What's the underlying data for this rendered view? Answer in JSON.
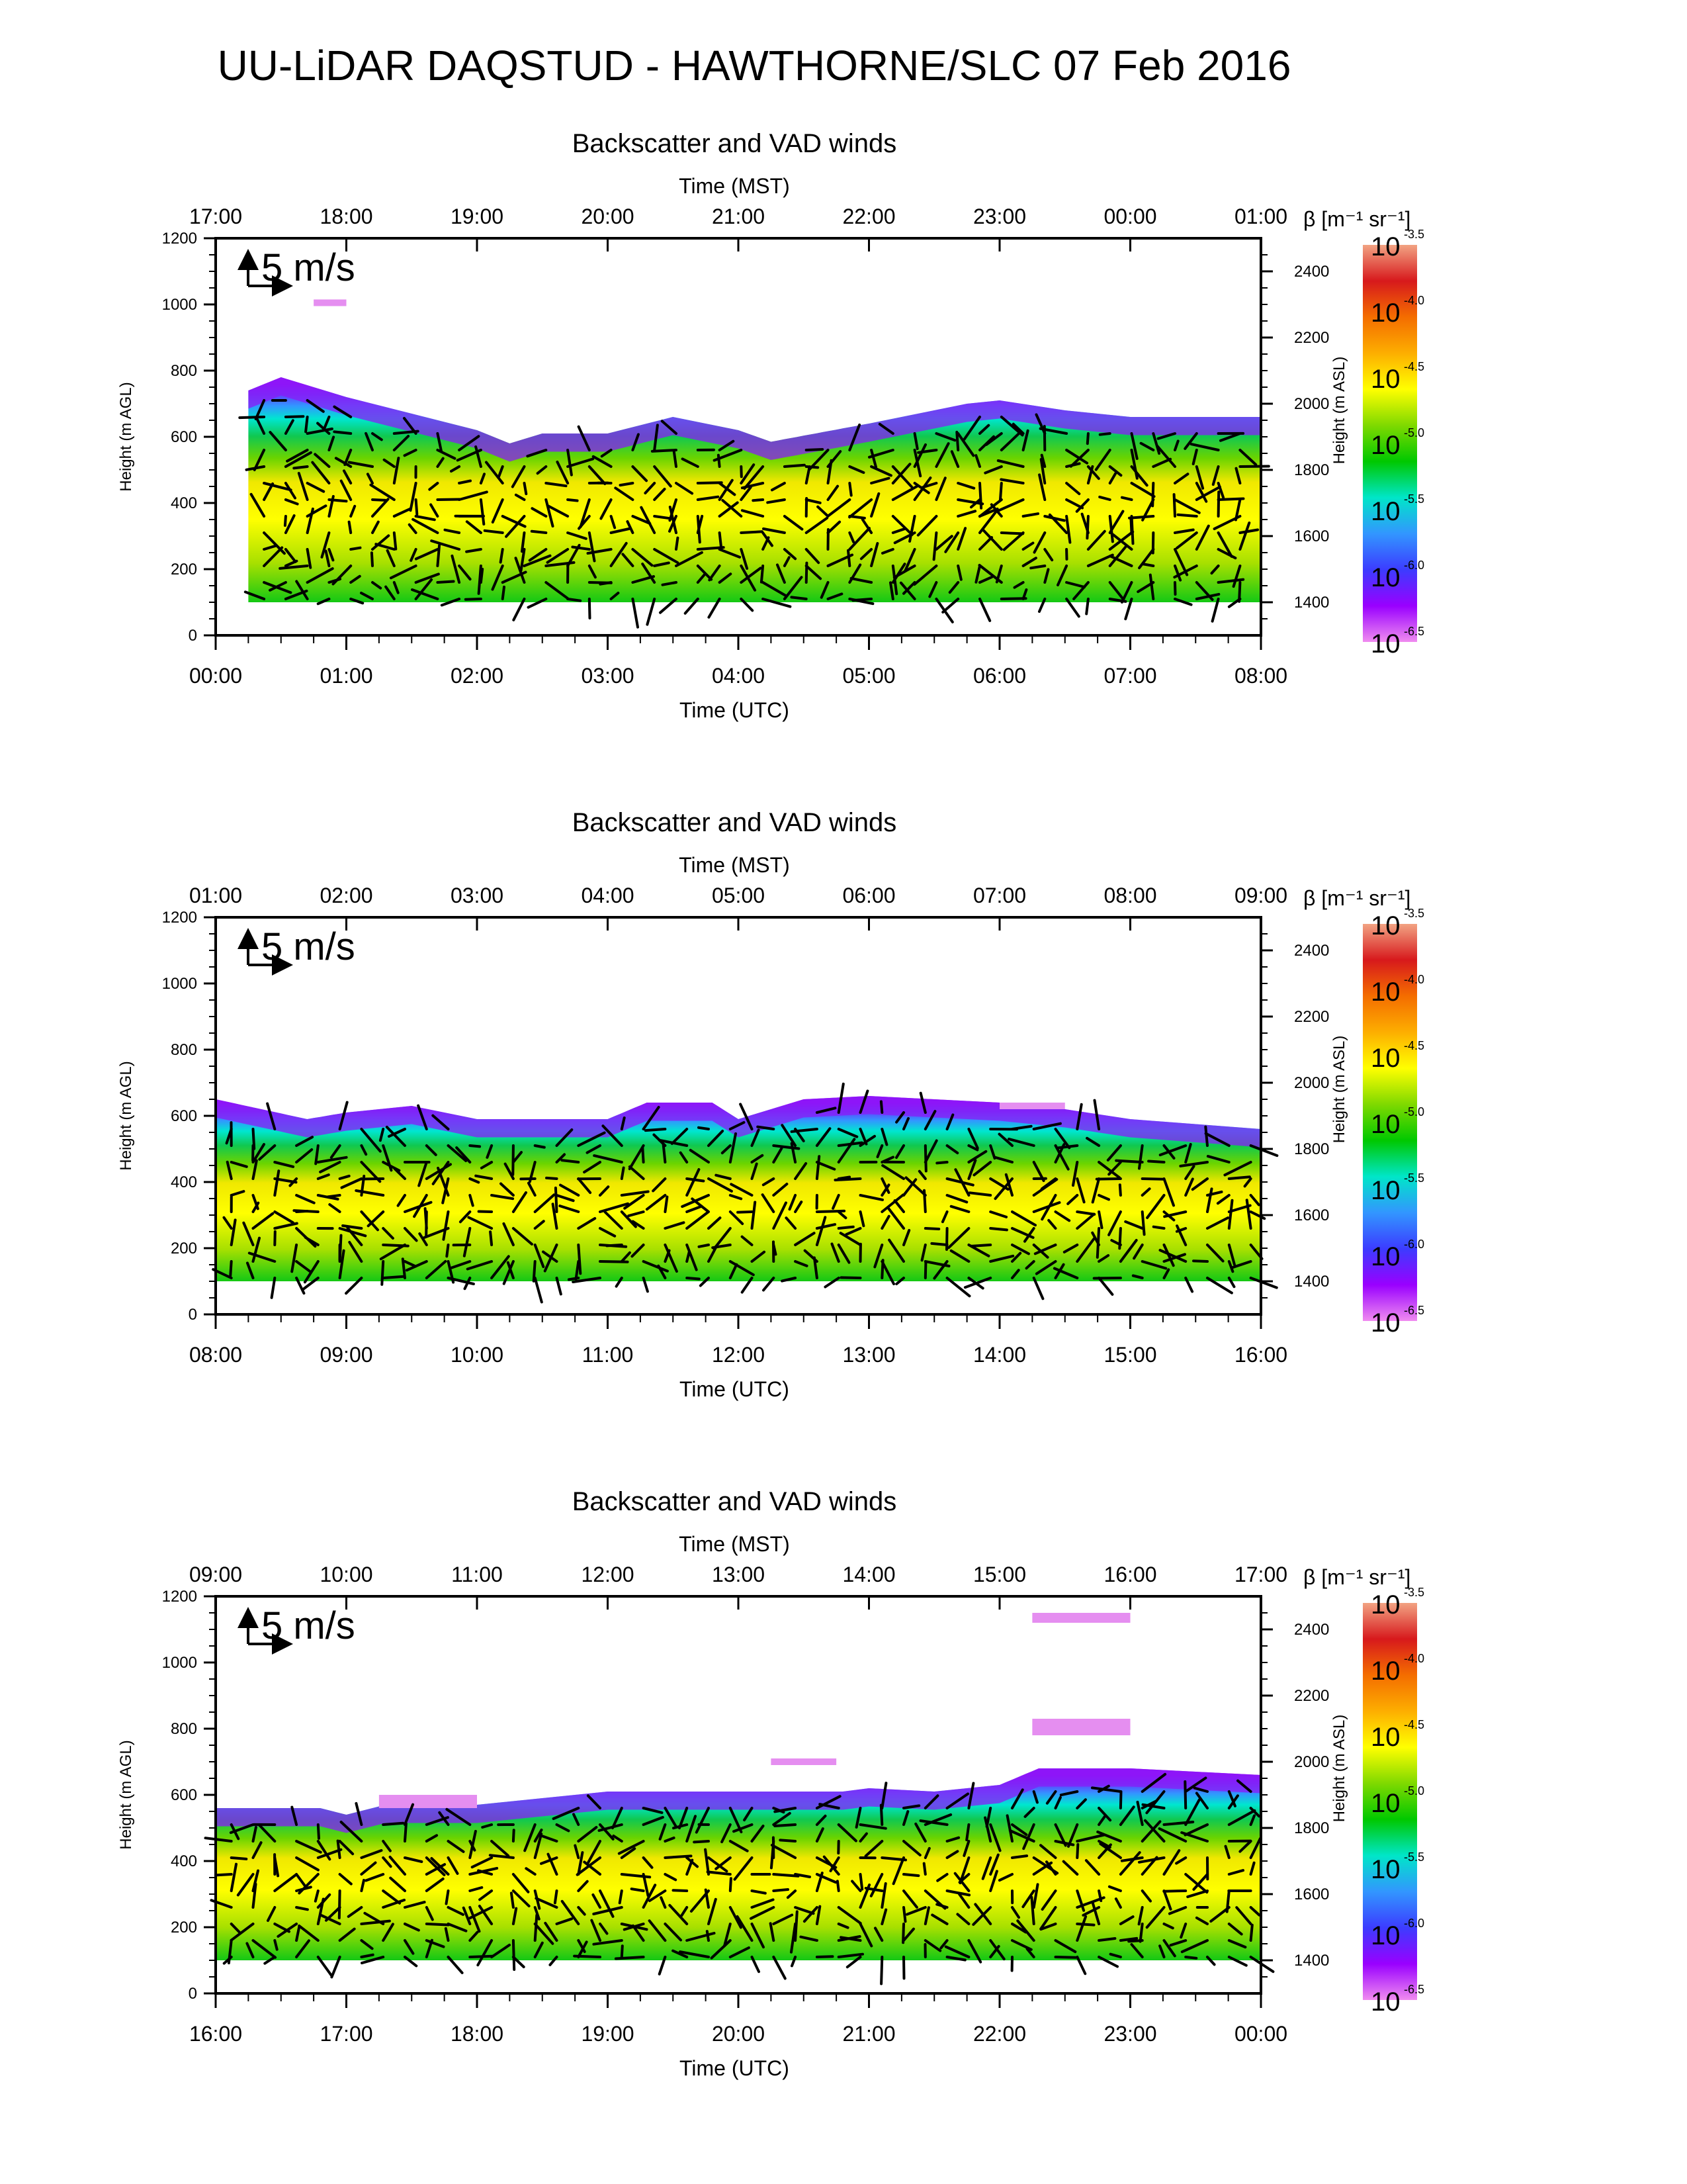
{
  "title": "UU-LiDAR DAQSTUD - HAWTHORNE/SLC 07 Feb 2016",
  "scale_arrow_label": "5 m/s",
  "colorbar": {
    "label": "β [m⁻¹ sr⁻¹]",
    "exponents": [
      "-3.5",
      "-4.0",
      "-4.5",
      "-5.0",
      "-5.5",
      "-6.0",
      "-6.5"
    ],
    "base": "10",
    "colors": [
      "#f2a383",
      "#d7191c",
      "#f46d00",
      "#fdae00",
      "#ffff00",
      "#7fd900",
      "#00c800",
      "#00e6c8",
      "#3296ff",
      "#3c3cff",
      "#9900ff",
      "#f08cf0"
    ]
  },
  "chart_data": [
    {
      "type": "heatmap",
      "title": "Backscatter and VAD winds",
      "top_axis_label": "Time (MST)",
      "bottom_axis_label": "Time (UTC)",
      "ylabel_left": "Height (m AGL)",
      "ylabel_right": "Height (m ASL)",
      "ylim": [
        0,
        1200
      ],
      "ylim_right_asl": [
        1300,
        2500
      ],
      "left_ticks": [
        "0",
        "200",
        "400",
        "600",
        "800",
        "1000",
        "1200"
      ],
      "right_ticks": [
        "1400",
        "1600",
        "1800",
        "2000",
        "2200",
        "2400"
      ],
      "mst_ticks": [
        "17:00",
        "18:00",
        "19:00",
        "20:00",
        "21:00",
        "22:00",
        "23:00",
        "00:00",
        "01:00"
      ],
      "utc_ticks": [
        "00:00",
        "01:00",
        "02:00",
        "03:00",
        "04:00",
        "05:00",
        "06:00",
        "07:00",
        "08:00"
      ],
      "data_start_hour": 0.25,
      "boundary_layer_top_m": [
        [
          0.25,
          740
        ],
        [
          0.5,
          780
        ],
        [
          1.0,
          720
        ],
        [
          2.0,
          620
        ],
        [
          2.25,
          580
        ],
        [
          2.5,
          610
        ],
        [
          3.0,
          610
        ],
        [
          3.5,
          660
        ],
        [
          4.0,
          620
        ],
        [
          4.25,
          585
        ],
        [
          5.0,
          640
        ],
        [
          5.75,
          700
        ],
        [
          6.0,
          710
        ],
        [
          6.5,
          680
        ],
        [
          7.0,
          660
        ],
        [
          8.0,
          660
        ]
      ],
      "haze_layer_mid_m": [
        [
          0,
          300
        ],
        [
          2,
          250
        ],
        [
          4,
          300
        ],
        [
          6,
          340
        ],
        [
          8,
          340
        ]
      ],
      "thin_layers": [
        {
          "start_hour": 0.75,
          "end_hour": 1.0,
          "base_m": 995,
          "top_m": 1015
        }
      ]
    },
    {
      "type": "heatmap",
      "title": "Backscatter and VAD winds",
      "top_axis_label": "Time (MST)",
      "bottom_axis_label": "Time (UTC)",
      "ylabel_left": "Height (m AGL)",
      "ylabel_right": "Height (m ASL)",
      "ylim": [
        0,
        1200
      ],
      "ylim_right_asl": [
        1300,
        2500
      ],
      "left_ticks": [
        "0",
        "200",
        "400",
        "600",
        "800",
        "1000",
        "1200"
      ],
      "right_ticks": [
        "1400",
        "1600",
        "1800",
        "2000",
        "2200",
        "2400"
      ],
      "mst_ticks": [
        "01:00",
        "02:00",
        "03:00",
        "04:00",
        "05:00",
        "06:00",
        "07:00",
        "08:00",
        "09:00"
      ],
      "utc_ticks": [
        "08:00",
        "09:00",
        "10:00",
        "11:00",
        "12:00",
        "13:00",
        "14:00",
        "15:00",
        "16:00"
      ],
      "data_start_hour": 0.0,
      "boundary_layer_top_m": [
        [
          0,
          650
        ],
        [
          0.7,
          590
        ],
        [
          1.0,
          610
        ],
        [
          1.5,
          630
        ],
        [
          2.0,
          590
        ],
        [
          3.0,
          590
        ],
        [
          3.3,
          640
        ],
        [
          3.8,
          640
        ],
        [
          4.0,
          590
        ],
        [
          4.5,
          650
        ],
        [
          5.0,
          660
        ],
        [
          6.0,
          640
        ],
        [
          6.5,
          620
        ],
        [
          7.0,
          590
        ],
        [
          8.0,
          560
        ]
      ],
      "haze_layer_mid_m": [
        [
          0,
          300
        ],
        [
          4,
          320
        ],
        [
          8,
          280
        ]
      ],
      "thin_layers": [
        {
          "start_hour": 6.0,
          "end_hour": 6.5,
          "base_m": 620,
          "top_m": 640
        }
      ]
    },
    {
      "type": "heatmap",
      "title": "Backscatter and VAD winds",
      "top_axis_label": "Time (MST)",
      "bottom_axis_label": "Time (UTC)",
      "ylabel_left": "Height (m AGL)",
      "ylabel_right": "Height (m ASL)",
      "ylim": [
        0,
        1200
      ],
      "ylim_right_asl": [
        1300,
        2500
      ],
      "left_ticks": [
        "0",
        "200",
        "400",
        "600",
        "800",
        "1000",
        "1200"
      ],
      "right_ticks": [
        "1400",
        "1600",
        "1800",
        "2000",
        "2200",
        "2400"
      ],
      "mst_ticks": [
        "09:00",
        "10:00",
        "11:00",
        "12:00",
        "13:00",
        "14:00",
        "15:00",
        "16:00",
        "17:00"
      ],
      "utc_ticks": [
        "16:00",
        "17:00",
        "18:00",
        "19:00",
        "20:00",
        "21:00",
        "22:00",
        "23:00",
        "00:00"
      ],
      "data_start_hour": 0.0,
      "boundary_layer_top_m": [
        [
          0,
          560
        ],
        [
          0.8,
          560
        ],
        [
          1.0,
          540
        ],
        [
          1.3,
          570
        ],
        [
          2.0,
          570
        ],
        [
          2.5,
          590
        ],
        [
          3.0,
          610
        ],
        [
          4.0,
          610
        ],
        [
          4.8,
          610
        ],
        [
          5.0,
          620
        ],
        [
          5.5,
          610
        ],
        [
          6.0,
          630
        ],
        [
          6.3,
          680
        ],
        [
          7.0,
          680
        ],
        [
          8.0,
          660
        ]
      ],
      "haze_layer_mid_m": [
        [
          0,
          280
        ],
        [
          4,
          320
        ],
        [
          7,
          350
        ],
        [
          8,
          320
        ]
      ],
      "thin_layers": [
        {
          "start_hour": 6.25,
          "end_hour": 7.0,
          "base_m": 1120,
          "top_m": 1150
        },
        {
          "start_hour": 6.25,
          "end_hour": 7.0,
          "base_m": 780,
          "top_m": 830
        },
        {
          "start_hour": 4.25,
          "end_hour": 4.75,
          "base_m": 690,
          "top_m": 710
        },
        {
          "start_hour": 1.25,
          "end_hour": 2.0,
          "base_m": 560,
          "top_m": 600
        }
      ]
    }
  ]
}
